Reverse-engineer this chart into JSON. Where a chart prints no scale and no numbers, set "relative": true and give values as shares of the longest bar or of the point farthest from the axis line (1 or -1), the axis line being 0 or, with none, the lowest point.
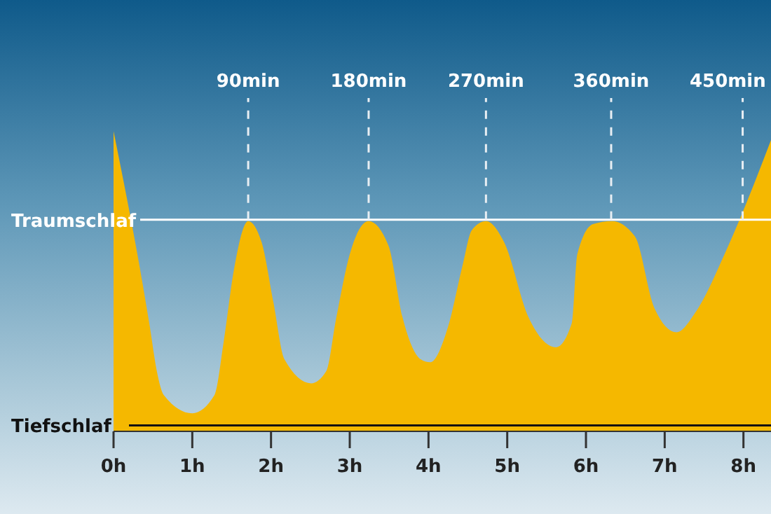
{
  "chart_data": {
    "type": "area",
    "relative": true,
    "x": [
      0,
      0.46,
      0.55,
      0.64,
      1.0,
      1.28,
      1.4,
      1.53,
      1.71,
      1.88,
      2.03,
      2.17,
      2.51,
      2.7,
      2.83,
      3.0,
      3.24,
      3.49,
      3.67,
      3.9,
      4.02,
      4.25,
      4.43,
      4.55,
      4.73,
      4.96,
      5.27,
      5.62,
      5.82,
      5.89,
      6.09,
      6.33,
      6.62,
      6.87,
      7.15,
      7.4,
      7.76,
      7.99,
      8.35
    ],
    "series": [
      {
        "color": "#f5b800",
        "values": [
          1,
          0.35,
          0.2,
          0.12,
          0.06,
          0.12,
          0.3,
          0.54,
          0.7,
          0.63,
          0.43,
          0.24,
          0.16,
          0.2,
          0.38,
          0.59,
          0.7,
          0.62,
          0.38,
          0.24,
          0.23,
          0.35,
          0.55,
          0.67,
          0.7,
          0.63,
          0.38,
          0.28,
          0.36,
          0.59,
          0.69,
          0.7,
          0.65,
          0.41,
          0.33,
          0.4,
          0.59,
          0.73,
          0.97
        ]
      }
    ],
    "xlim": [
      0,
      8.35
    ],
    "xticks": [
      {
        "value": 0,
        "label": "0h"
      },
      {
        "value": 1,
        "label": "1h"
      },
      {
        "value": 2,
        "label": "2h"
      },
      {
        "value": 3,
        "label": "3h"
      },
      {
        "value": 4,
        "label": "4h"
      },
      {
        "value": 5,
        "label": "5h"
      },
      {
        "value": 6,
        "label": "6h"
      },
      {
        "value": 7,
        "label": "7h"
      },
      {
        "value": 8,
        "label": "8h"
      }
    ],
    "ref_lines": [
      {
        "axis": "y",
        "value": 0.705,
        "label": "Traumschlaf",
        "color": "#ffffff"
      },
      {
        "axis": "y",
        "value": 0.02,
        "label": "Tiefschlaf",
        "color": "#111111"
      },
      {
        "axis": "x",
        "value": 1.71,
        "label": "90min",
        "color": "#e8eef3",
        "line_style": "dashed"
      },
      {
        "axis": "x",
        "value": 3.24,
        "label": "180min",
        "color": "#e8eef3",
        "line_style": "dashed"
      },
      {
        "axis": "x",
        "value": 4.73,
        "label": "270min",
        "color": "#e8eef3",
        "line_style": "dashed"
      },
      {
        "axis": "x",
        "value": 6.32,
        "label": "360min",
        "color": "#e8eef3",
        "line_style": "dashed"
      },
      {
        "axis": "x",
        "value": 7.99,
        "label": "450min",
        "color": "#e8eef3",
        "line_style": "dashed"
      }
    ]
  }
}
